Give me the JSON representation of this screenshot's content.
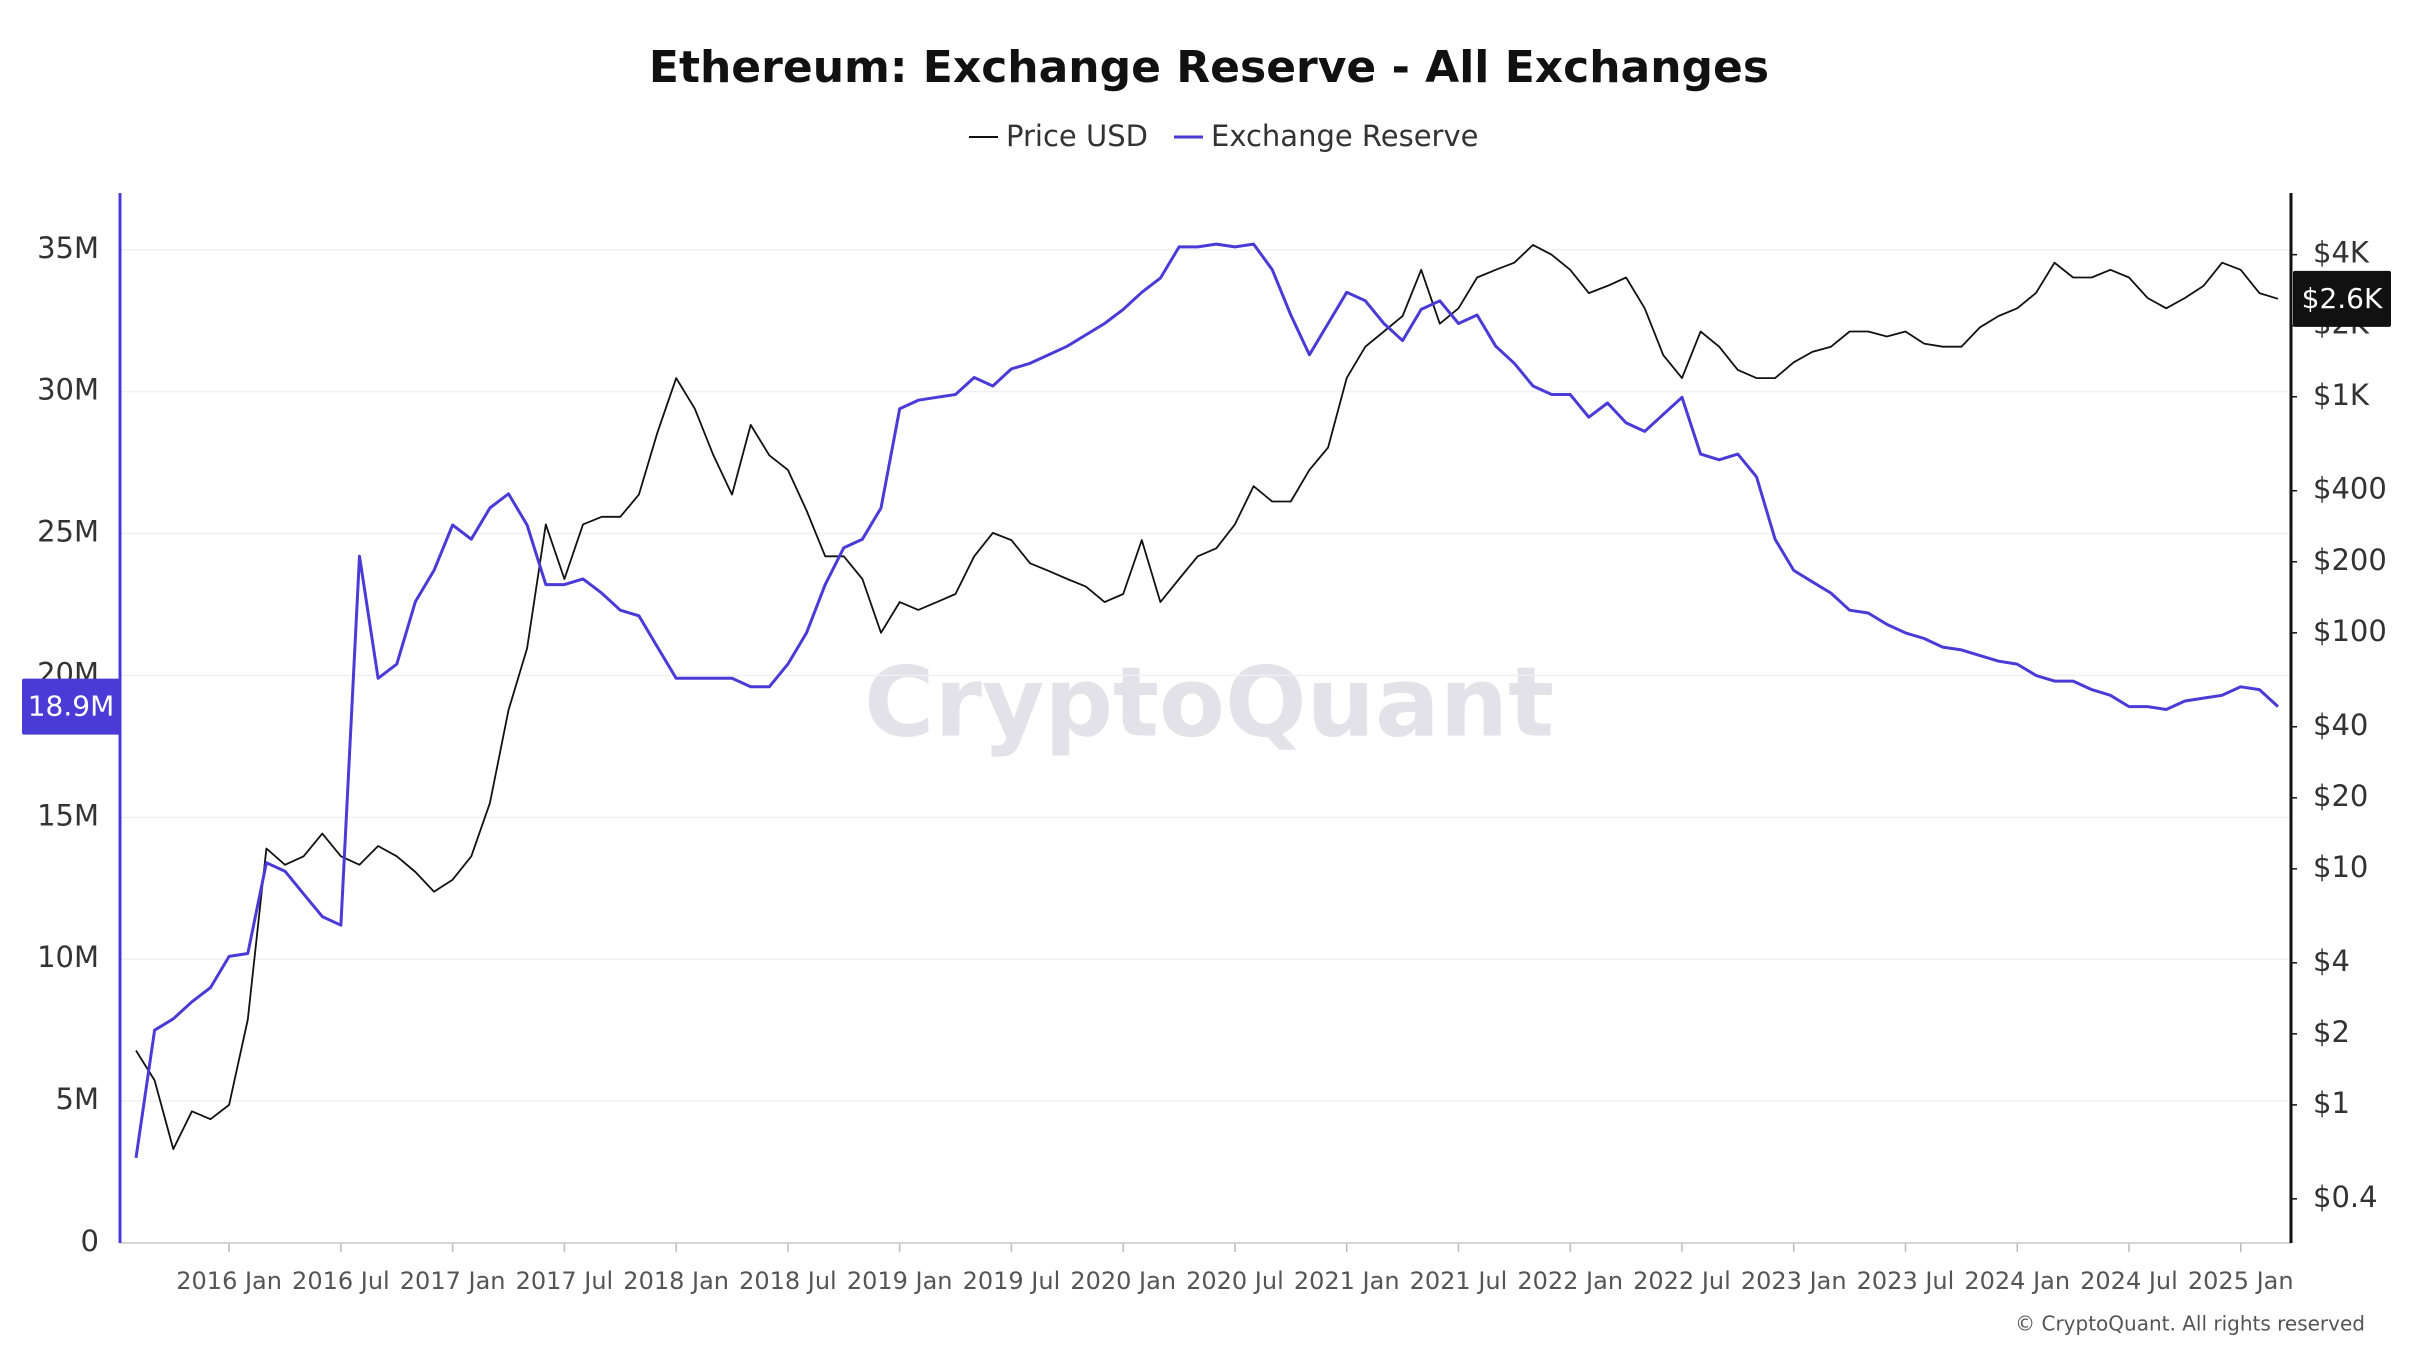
{
  "chart_data": {
    "type": "line",
    "title": "Ethereum: Exchange Reserve - All Exchanges",
    "watermark": "CryptoQuant",
    "source": "© CryptoQuant. All rights reserved",
    "x": [
      "2015-08",
      "2015-09",
      "2015-10",
      "2015-11",
      "2015-12",
      "2016-01",
      "2016-02",
      "2016-03",
      "2016-04",
      "2016-05",
      "2016-06",
      "2016-07",
      "2016-08",
      "2016-09",
      "2016-10",
      "2016-11",
      "2016-12",
      "2017-01",
      "2017-02",
      "2017-03",
      "2017-04",
      "2017-05",
      "2017-06",
      "2017-07",
      "2017-08",
      "2017-09",
      "2017-10",
      "2017-11",
      "2017-12",
      "2018-01",
      "2018-02",
      "2018-03",
      "2018-04",
      "2018-05",
      "2018-06",
      "2018-07",
      "2018-08",
      "2018-09",
      "2018-10",
      "2018-11",
      "2018-12",
      "2019-01",
      "2019-02",
      "2019-03",
      "2019-04",
      "2019-05",
      "2019-06",
      "2019-07",
      "2019-08",
      "2019-09",
      "2019-10",
      "2019-11",
      "2019-12",
      "2020-01",
      "2020-02",
      "2020-03",
      "2020-04",
      "2020-05",
      "2020-06",
      "2020-07",
      "2020-08",
      "2020-09",
      "2020-10",
      "2020-11",
      "2020-12",
      "2021-01",
      "2021-02",
      "2021-03",
      "2021-04",
      "2021-05",
      "2021-06",
      "2021-07",
      "2021-08",
      "2021-09",
      "2021-10",
      "2021-11",
      "2021-12",
      "2022-01",
      "2022-02",
      "2022-03",
      "2022-04",
      "2022-05",
      "2022-06",
      "2022-07",
      "2022-08",
      "2022-09",
      "2022-10",
      "2022-11",
      "2022-12",
      "2023-01",
      "2023-02",
      "2023-03",
      "2023-04",
      "2023-05",
      "2023-06",
      "2023-07",
      "2023-08",
      "2023-09",
      "2023-10",
      "2023-11",
      "2023-12",
      "2024-01",
      "2024-02",
      "2024-03",
      "2024-04",
      "2024-05",
      "2024-06",
      "2024-07",
      "2024-08",
      "2024-09",
      "2024-10",
      "2024-11",
      "2024-12",
      "2025-01",
      "2025-02",
      "2025-03"
    ],
    "xlim": [
      "2015-08",
      "2025-03"
    ],
    "xticks": [
      {
        "value": "2016-01",
        "label": "2016 Jan"
      },
      {
        "value": "2016-07",
        "label": "2016 Jul"
      },
      {
        "value": "2017-01",
        "label": "2017 Jan"
      },
      {
        "value": "2017-07",
        "label": "2017 Jul"
      },
      {
        "value": "2018-01",
        "label": "2018 Jan"
      },
      {
        "value": "2018-07",
        "label": "2018 Jul"
      },
      {
        "value": "2019-01",
        "label": "2019 Jan"
      },
      {
        "value": "2019-07",
        "label": "2019 Jul"
      },
      {
        "value": "2020-01",
        "label": "2020 Jan"
      },
      {
        "value": "2020-07",
        "label": "2020 Jul"
      },
      {
        "value": "2021-01",
        "label": "2021 Jan"
      },
      {
        "value": "2021-07",
        "label": "2021 Jul"
      },
      {
        "value": "2022-01",
        "label": "2022 Jan"
      },
      {
        "value": "2022-07",
        "label": "2022 Jul"
      },
      {
        "value": "2023-01",
        "label": "2023 Jan"
      },
      {
        "value": "2023-07",
        "label": "2023 Jul"
      },
      {
        "value": "2024-01",
        "label": "2024 Jan"
      },
      {
        "value": "2024-07",
        "label": "2024 Jul"
      },
      {
        "value": "2025-01",
        "label": "2025 Jan"
      }
    ],
    "ylim": [
      0,
      37000000
    ],
    "yticks": [
      0,
      {
        "value": 5000000,
        "label": "5M"
      },
      {
        "value": 10000000,
        "label": "10M"
      },
      {
        "value": 15000000,
        "label": "15M"
      },
      {
        "value": 20000000,
        "label": "20M"
      },
      {
        "value": 25000000,
        "label": "25M"
      },
      {
        "value": 30000000,
        "label": "30M"
      },
      {
        "value": 35000000,
        "label": "35M"
      }
    ],
    "y2lim": [
      0.26,
      7300
    ],
    "y2scale": "log",
    "y2ticks": [
      {
        "value": 0.4,
        "label": "$0.4"
      },
      {
        "value": 1,
        "label": "$1"
      },
      {
        "value": 2,
        "label": "$2"
      },
      {
        "value": 4,
        "label": "$4"
      },
      {
        "value": 10,
        "label": "$10"
      },
      {
        "value": 20,
        "label": "$20"
      },
      {
        "value": 40,
        "label": "$40"
      },
      {
        "value": 100,
        "label": "$100"
      },
      {
        "value": 200,
        "label": "$200"
      },
      {
        "value": 400,
        "label": "$400"
      },
      {
        "value": 1000,
        "label": "$1K"
      },
      {
        "value": 2000,
        "label": "$2K"
      },
      {
        "value": 4000,
        "label": "$4K"
      }
    ],
    "grid": true,
    "legend": "top",
    "series": [
      {
        "name": "Price USD",
        "color": "#111111",
        "axis": "y2",
        "values": [
          1.7,
          1.27,
          0.65,
          0.94,
          0.87,
          1.0,
          2.3,
          12.2,
          10.4,
          11.3,
          14.1,
          11.3,
          10.4,
          12.5,
          11.3,
          9.7,
          8.0,
          9.0,
          11.3,
          19,
          47,
          86,
          288,
          169,
          288,
          310,
          310,
          385,
          707,
          1200,
          890,
          565,
          385,
          760,
          565,
          490,
          330,
          211,
          211,
          169,
          100,
          135,
          125,
          135,
          146,
          211,
          265,
          247,
          197,
          183,
          169,
          157,
          135,
          146,
          247,
          135,
          169,
          211,
          228,
          288,
          418,
          360,
          360,
          490,
          610,
          1200,
          1630,
          1890,
          2200,
          3450,
          2040,
          2370,
          3200,
          3450,
          3700,
          4400,
          4000,
          3450,
          2750,
          2950,
          3200,
          2370,
          1500,
          1200,
          1890,
          1630,
          1300,
          1200,
          1200,
          1400,
          1550,
          1630,
          1890,
          1890,
          1800,
          1890,
          1680,
          1630,
          1630,
          1970,
          2200,
          2370,
          2750,
          3700,
          3200,
          3200,
          3450,
          3200,
          2620,
          2370,
          2620,
          2950,
          3700,
          3450,
          2750,
          2600
        ]
      },
      {
        "name": "Exchange Reserve",
        "color": "#4a3bd6",
        "values": [
          3000000,
          7500000,
          7900000,
          8500000,
          9000000,
          10100000,
          10200000,
          13400000,
          13100000,
          12300000,
          11500000,
          11200000,
          24200000,
          19900000,
          20400000,
          22600000,
          23700000,
          25300000,
          24800000,
          25900000,
          26400000,
          25300000,
          23200000,
          23200000,
          23400000,
          22900000,
          22300000,
          22100000,
          21000000,
          19900000,
          19900000,
          19900000,
          19900000,
          19600000,
          19600000,
          20400000,
          21500000,
          23200000,
          24500000,
          24800000,
          25900000,
          29400000,
          29700000,
          29800000,
          29900000,
          30500000,
          30200000,
          30800000,
          31000000,
          31300000,
          31600000,
          32000000,
          32400000,
          32900000,
          33500000,
          34000000,
          35100000,
          35100000,
          35200000,
          35100000,
          35200000,
          34300000,
          32700000,
          31300000,
          32400000,
          33500000,
          33200000,
          32400000,
          31800000,
          32900000,
          33200000,
          32400000,
          32700000,
          31600000,
          31000000,
          30200000,
          29900000,
          29900000,
          29100000,
          29600000,
          28900000,
          28600000,
          29200000,
          29800000,
          27800000,
          27600000,
          27800000,
          27000000,
          24800000,
          23700000,
          23300000,
          22900000,
          22300000,
          22200000,
          21800000,
          21500000,
          21300000,
          21000000,
          20900000,
          20700000,
          20500000,
          20400000,
          20000000,
          19800000,
          19800000,
          19500000,
          19300000,
          18900000,
          18900000,
          18800000,
          19100000,
          19200000,
          19300000,
          19600000,
          19500000,
          18900000
        ]
      }
    ],
    "annotations": [
      {
        "label": "18.9M",
        "value": 18900000,
        "axis": "y"
      },
      {
        "label": "$2.6K",
        "value": 2600,
        "axis": "y2"
      }
    ]
  }
}
